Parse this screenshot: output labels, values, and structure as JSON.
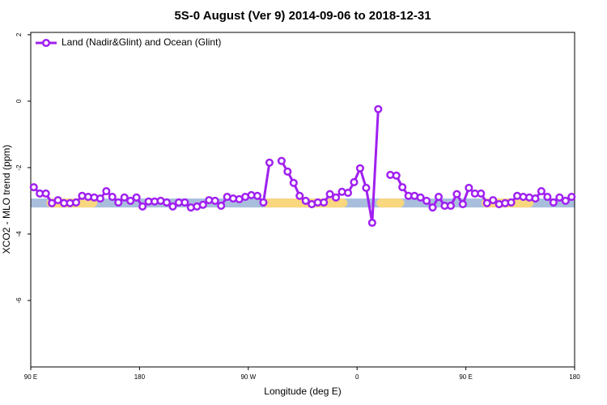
{
  "chart_data": {
    "type": "line",
    "title": "5S-0 August (Ver 9)   2014-09-06 to 2018-12-31",
    "x_label": "Longitude (deg E)",
    "y_label": "XCO2 - MLO trend (ppm)",
    "xlim": [
      90,
      540
    ],
    "xticks": [
      {
        "value": 90,
        "label": "90 E"
      },
      180,
      {
        "value": 270,
        "label": "90 W"
      },
      {
        "value": 360,
        "label": "0"
      },
      {
        "value": 450,
        "label": "90 E"
      },
      {
        "value": 540,
        "label": "180"
      }
    ],
    "ylim": [
      -8,
      2.07
    ],
    "yticks": [
      2,
      0,
      -2,
      -4,
      -6
    ],
    "legend": "top-left",
    "band": [
      -3.2,
      -2.93
    ],
    "band_color": "#a8bedc",
    "land_ranges": [
      [
        103,
        145
      ],
      [
        282,
        352
      ],
      [
        376,
        399
      ],
      [
        463,
        506
      ]
    ],
    "land_color": "#f9d77e",
    "x": [
      92.5,
      97.5,
      102.5,
      107.5,
      112.5,
      117.5,
      122.5,
      127.5,
      132.5,
      137.5,
      142.5,
      147.5,
      152.5,
      157.5,
      162.5,
      167.5,
      172.5,
      177.5,
      182.5,
      187.5,
      192.5,
      197.5,
      202.5,
      207.5,
      212.5,
      217.5,
      222.5,
      227.5,
      232.5,
      237.5,
      242.5,
      247.5,
      252.5,
      257.5,
      262.5,
      267.5,
      272.5,
      277.5,
      282.5,
      287.5,
      292.5,
      297.5,
      302.5,
      307.5,
      312.5,
      317.5,
      322.5,
      327.5,
      332.5,
      337.5,
      342.5,
      347.5,
      352.5,
      357.5,
      362.5,
      367.5,
      372.5,
      377.5,
      382.5,
      387.5,
      392.5,
      397.5,
      402.5,
      407.5,
      412.5,
      417.5,
      422.5,
      427.5,
      432.5,
      437.5,
      442.5,
      447.5,
      452.5,
      457.5,
      462.5,
      467.5,
      472.5,
      477.5,
      482.5,
      487.5,
      492.5,
      497.5,
      502.5,
      507.5,
      512.5,
      517.5,
      522.5,
      527.5,
      532.5,
      537.5
    ],
    "series": [
      {
        "name": "Land (Nadir&Glint) and Ocean (Glint)",
        "color": "#a020f0",
        "values": [
          -2.59,
          -2.78,
          -2.78,
          -3.07,
          -2.98,
          -3.07,
          -3.07,
          -3.05,
          -2.85,
          -2.88,
          -2.9,
          -2.93,
          -2.71,
          -2.88,
          -3.05,
          -2.9,
          -3.0,
          -2.9,
          -3.17,
          -3.02,
          -3.02,
          -3.0,
          -3.05,
          -3.17,
          -3.05,
          -3.05,
          -3.2,
          -3.17,
          -3.12,
          -2.98,
          -3.0,
          -3.15,
          -2.88,
          -2.93,
          -2.95,
          -2.88,
          -2.83,
          -2.85,
          -3.05,
          -1.85,
          null,
          -1.8,
          -2.12,
          -2.46,
          -2.85,
          -3.0,
          -3.1,
          -3.05,
          -3.05,
          -2.8,
          -2.9,
          -2.73,
          -2.76,
          -2.44,
          -2.02,
          -2.61,
          -3.66,
          -0.24,
          null,
          -2.22,
          -2.24,
          -2.59,
          -2.85,
          -2.85,
          -2.9,
          -3.0,
          -3.2,
          -2.88,
          -3.15,
          -3.15,
          -2.8,
          -3.1,
          -2.61,
          -2.78,
          -2.78,
          -3.07,
          -2.98,
          -3.1,
          -3.07,
          -3.05,
          -2.85,
          -2.88,
          -2.9,
          -2.93,
          -2.71,
          -2.88,
          -3.05,
          -2.9,
          -3.0,
          -2.88
        ]
      }
    ]
  }
}
